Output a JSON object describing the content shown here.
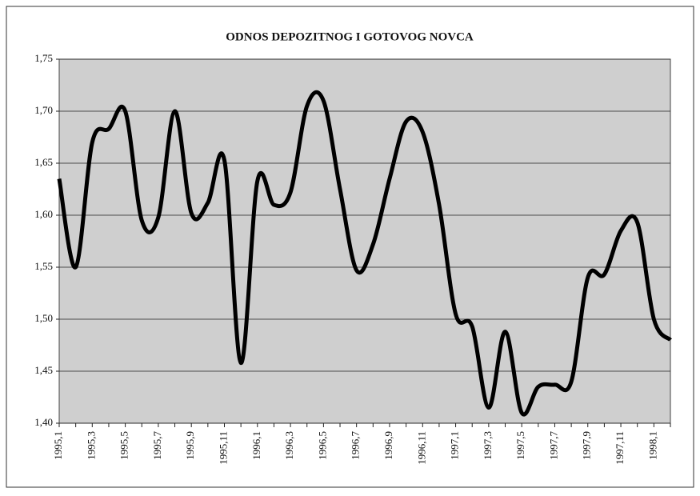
{
  "chart_data": {
    "type": "line",
    "title": "ODNOS DEPOZITNOG I GOTOVOG NOVCA",
    "categories": [
      "1995,1",
      null,
      "1995,3",
      null,
      "1995,5",
      null,
      "1995,7",
      null,
      "1995,9",
      null,
      "1995,11",
      null,
      "1996,1",
      null,
      "1996,3",
      null,
      "1996,5",
      null,
      "1996,7",
      null,
      "1996,9",
      null,
      "1996,11",
      null,
      "1997,1",
      null,
      "1997,3",
      null,
      "1997,5",
      null,
      "1997,7",
      null,
      "1997,9",
      null,
      "1997,11",
      null,
      "1998,1",
      null
    ],
    "series": [
      {
        "color": "#000000",
        "values": [
          1.635,
          1.55,
          1.67,
          1.683,
          1.7,
          1.595,
          1.598,
          1.7,
          1.602,
          1.612,
          1.653,
          1.458,
          1.633,
          1.61,
          1.622,
          1.705,
          1.71,
          1.625,
          1.547,
          1.572,
          1.635,
          1.69,
          1.68,
          1.61,
          1.505,
          1.493,
          1.415,
          1.488,
          1.41,
          1.435,
          1.437,
          1.44,
          1.54,
          1.543,
          1.585,
          1.593,
          1.5,
          1.48
        ]
      }
    ],
    "ylim": [
      1.4,
      1.75
    ],
    "yticks": [
      {
        "value": 1.4,
        "label": "1,40"
      },
      {
        "value": 1.45,
        "label": "1,45"
      },
      {
        "value": 1.5,
        "label": "1,50"
      },
      {
        "value": 1.55,
        "label": "1,55"
      },
      {
        "value": 1.6,
        "label": "1,60"
      },
      {
        "value": 1.65,
        "label": "1,65"
      },
      {
        "value": 1.7,
        "label": "1,70"
      },
      {
        "value": 1.75,
        "label": "1,75"
      }
    ],
    "grid": true
  }
}
